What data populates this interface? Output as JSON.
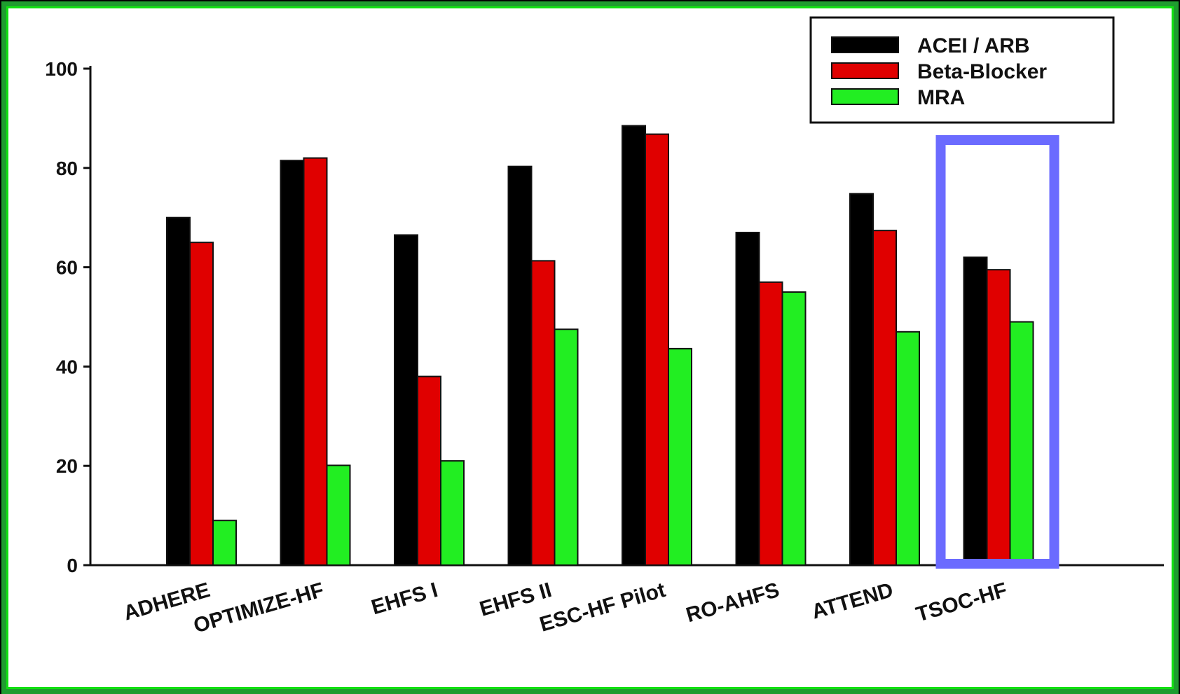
{
  "chart_data": {
    "type": "bar",
    "categories": [
      "ADHERE",
      "OPTIMIZE-HF",
      "EHFS I",
      "EHFS II",
      "ESC-HF Pilot",
      "RO-AHFS",
      "ATTEND",
      "TSOC-HF"
    ],
    "series": [
      {
        "name": "ACEI / ARB",
        "color": "#000000",
        "values": [
          70,
          81.5,
          66.5,
          80.3,
          88.5,
          67,
          74.8,
          62
        ]
      },
      {
        "name": "Beta-Blocker",
        "color": "#e00000",
        "values": [
          65,
          82,
          38,
          61.3,
          86.8,
          57,
          67.4,
          59.5
        ]
      },
      {
        "name": "MRA",
        "color": "#22ee22",
        "values": [
          9,
          20.1,
          21,
          47.5,
          43.6,
          55,
          47,
          49
        ]
      }
    ],
    "y_ticks": [
      "0",
      "20",
      "40",
      "60",
      "80",
      "100"
    ],
    "ylim": [
      0,
      100
    ],
    "grid": false,
    "legend_position": "top-right",
    "highlight": {
      "category": "TSOC-HF",
      "color": "#6b6bff"
    },
    "frame_colors": {
      "outer": "#1f9c2f",
      "inner": "#12e012"
    }
  }
}
